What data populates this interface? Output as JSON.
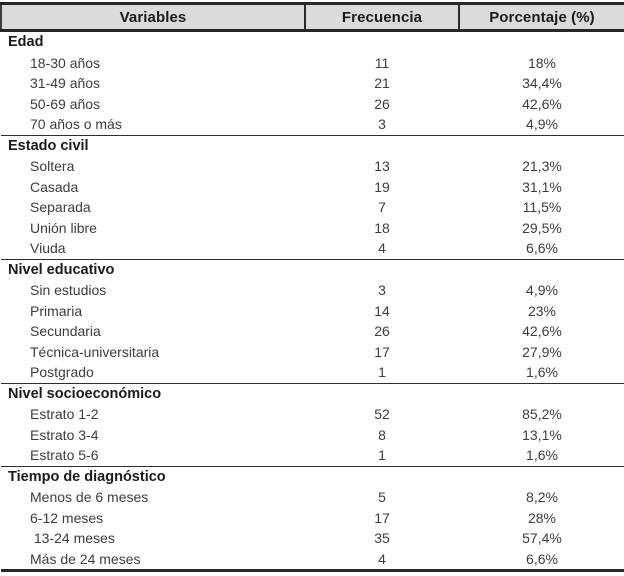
{
  "table": {
    "headers": [
      "Variables",
      "Frecuencia",
      "Porcentaje (%)"
    ],
    "sections": [
      {
        "title": "Edad",
        "rows": [
          {
            "label": "18-30 años",
            "frequency": "11",
            "percentage": "18%"
          },
          {
            "label": "31-49 años",
            "frequency": "21",
            "percentage": "34,4%"
          },
          {
            "label": "50-69 años",
            "frequency": "26",
            "percentage": "42,6%"
          },
          {
            "label": "70 años o más",
            "frequency": "3",
            "percentage": "4,9%"
          }
        ]
      },
      {
        "title": "Estado civil",
        "rows": [
          {
            "label": "Soltera",
            "frequency": "13",
            "percentage": "21,3%"
          },
          {
            "label": "Casada",
            "frequency": "19",
            "percentage": "31,1%"
          },
          {
            "label": "Separada",
            "frequency": "7",
            "percentage": "11,5%"
          },
          {
            "label": "Unión libre",
            "frequency": "18",
            "percentage": "29,5%"
          },
          {
            "label": "Viuda",
            "frequency": "4",
            "percentage": "6,6%"
          }
        ]
      },
      {
        "title": "Nivel educativo",
        "rows": [
          {
            "label": "Sin estudios",
            "frequency": "3",
            "percentage": "4,9%"
          },
          {
            "label": "Primaria",
            "frequency": "14",
            "percentage": "23%"
          },
          {
            "label": "Secundaria",
            "frequency": "26",
            "percentage": "42,6%"
          },
          {
            "label": "Técnica-universitaria",
            "frequency": "17",
            "percentage": "27,9%"
          },
          {
            "label": "Postgrado",
            "frequency": "1",
            "percentage": "1,6%"
          }
        ]
      },
      {
        "title": "Nivel socioeconómico",
        "rows": [
          {
            "label": "Estrato 1-2",
            "frequency": "52",
            "percentage": "85,2%"
          },
          {
            "label": "Estrato 3-4",
            "frequency": "8",
            "percentage": "13,1%"
          },
          {
            "label": "Estrato 5-6",
            "frequency": "1",
            "percentage": "1,6%"
          }
        ]
      },
      {
        "title": "Tiempo de diagnóstico",
        "rows": [
          {
            "label": "Menos de 6 meses",
            "frequency": "5",
            "percentage": "8,2%"
          },
          {
            "label": "6-12 meses",
            "frequency": "17",
            "percentage": "28%"
          },
          {
            "label": " 13-24 meses",
            "frequency": "35",
            "percentage": "57,4%"
          },
          {
            "label": "Más de 24 meses",
            "frequency": "4",
            "percentage": "6,6%"
          }
        ]
      }
    ]
  },
  "chart_data": {
    "type": "table",
    "title": "",
    "columns": [
      "Variables",
      "Frecuencia",
      "Porcentaje (%)"
    ],
    "groups": [
      {
        "group": "Edad",
        "rows": [
          [
            "18-30 años",
            11,
            "18%"
          ],
          [
            "31-49 años",
            21,
            "34,4%"
          ],
          [
            "50-69 años",
            26,
            "42,6%"
          ],
          [
            "70 años o más",
            3,
            "4,9%"
          ]
        ]
      },
      {
        "group": "Estado civil",
        "rows": [
          [
            "Soltera",
            13,
            "21,3%"
          ],
          [
            "Casada",
            19,
            "31,1%"
          ],
          [
            "Separada",
            7,
            "11,5%"
          ],
          [
            "Unión libre",
            18,
            "29,5%"
          ],
          [
            "Viuda",
            4,
            "6,6%"
          ]
        ]
      },
      {
        "group": "Nivel educativo",
        "rows": [
          [
            "Sin estudios",
            3,
            "4,9%"
          ],
          [
            "Primaria",
            14,
            "23%"
          ],
          [
            "Secundaria",
            26,
            "42,6%"
          ],
          [
            "Técnica-universitaria",
            17,
            "27,9%"
          ],
          [
            "Postgrado",
            1,
            "1,6%"
          ]
        ]
      },
      {
        "group": "Nivel socioeconómico",
        "rows": [
          [
            "Estrato 1-2",
            52,
            "85,2%"
          ],
          [
            "Estrato 3-4",
            8,
            "13,1%"
          ],
          [
            "Estrato 5-6",
            1,
            "1,6%"
          ]
        ]
      },
      {
        "group": "Tiempo de diagnóstico",
        "rows": [
          [
            "Menos de 6 meses",
            5,
            "8,2%"
          ],
          [
            "6-12 meses",
            17,
            "28%"
          ],
          [
            "13-24 meses",
            35,
            "57,4%"
          ],
          [
            "Más de 24 meses",
            4,
            "6,6%"
          ]
        ]
      }
    ]
  },
  "colors": {
    "header_bg": "#dbdbdb",
    "border": "#262626",
    "text": "#3d3d3d",
    "bold_text": "#1a1a1a"
  }
}
